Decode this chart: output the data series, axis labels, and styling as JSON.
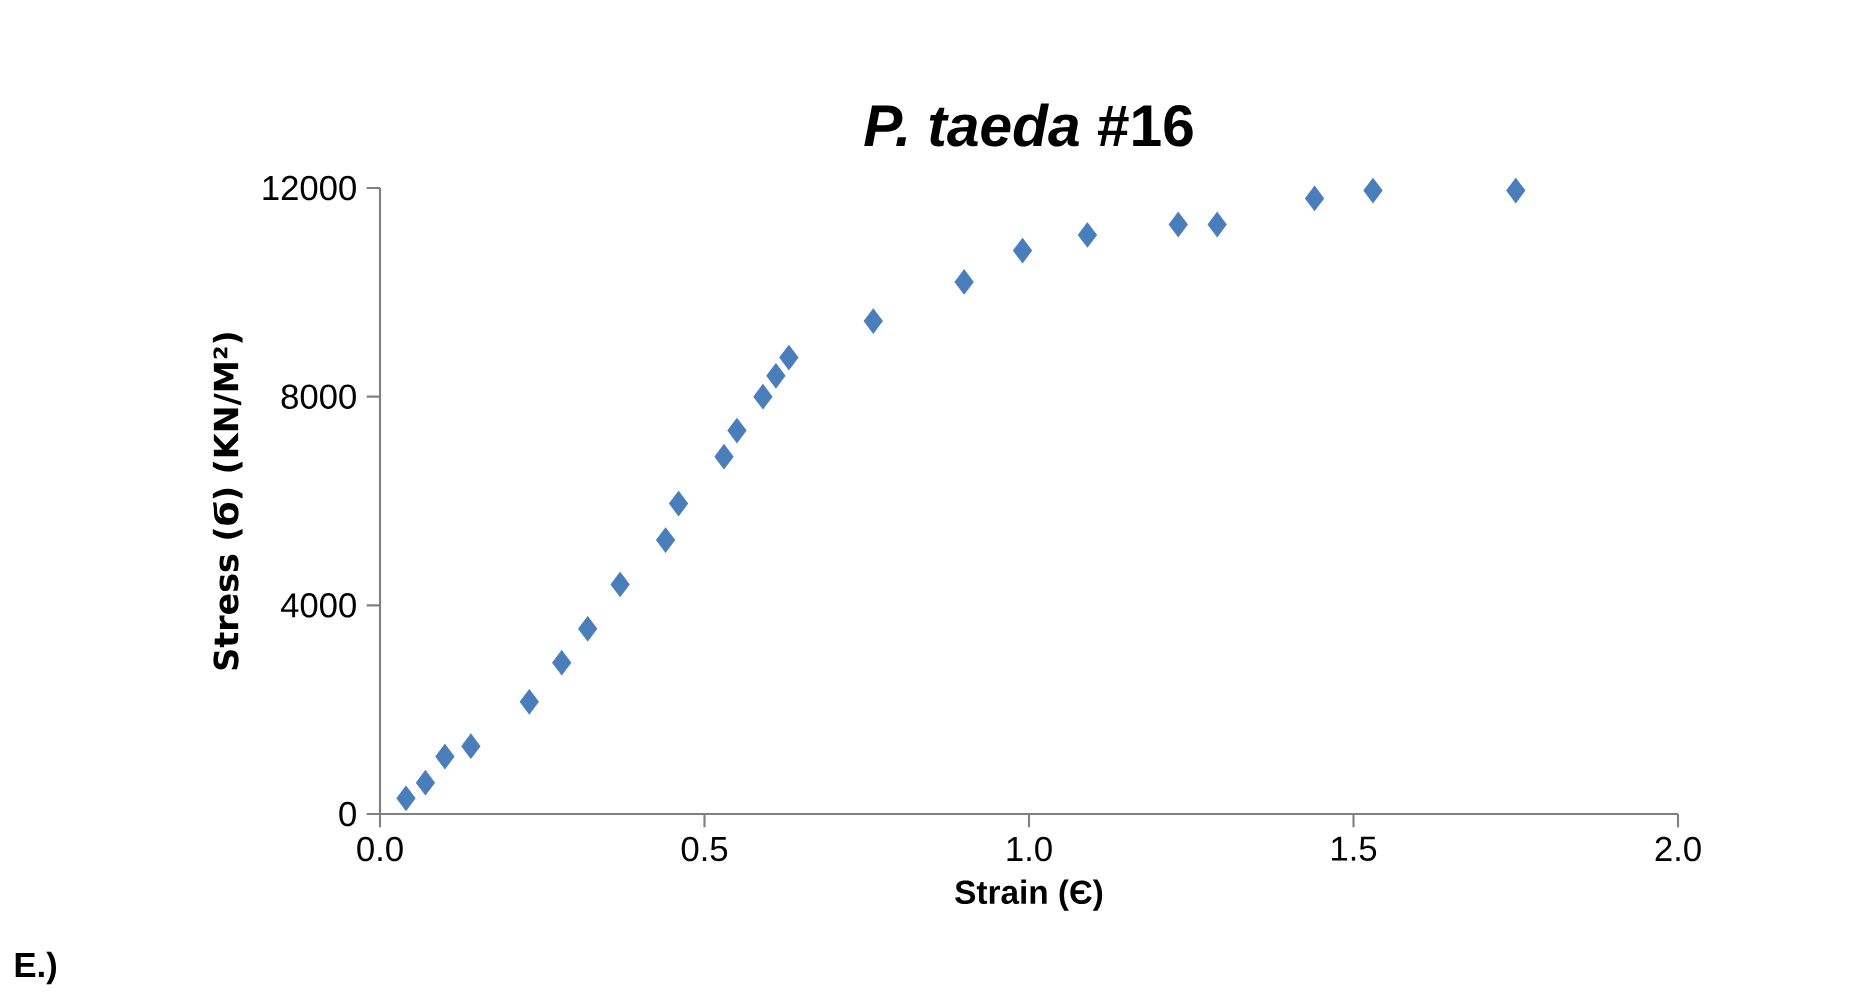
{
  "chart_data": {
    "type": "scatter",
    "title": "*P. taeda* #16",
    "xlabel": "Strain (Є)",
    "ylabel": "Stress (Ϭ) (KN/M²)",
    "annotations": [
      "E.)"
    ],
    "x": [
      0.04,
      0.07,
      0.1,
      0.14,
      0.23,
      0.28,
      0.32,
      0.37,
      0.44,
      0.46,
      0.53,
      0.55,
      0.59,
      0.61,
      0.63,
      0.76,
      0.9,
      0.99,
      1.09,
      1.23,
      1.29,
      1.44,
      1.53,
      1.75
    ],
    "series": [
      {
        "color": "#4a7ebb",
        "values": [
          300,
          600,
          1100,
          1300,
          2150,
          2900,
          3550,
          4400,
          5250,
          5950,
          6850,
          7350,
          8000,
          8400,
          8750,
          9450,
          10200,
          10800,
          11100,
          11300,
          11300,
          11800,
          11950,
          11950
        ]
      }
    ],
    "xlim": [
      0,
      2
    ],
    "ylim": [
      0,
      12000
    ],
    "xticks": [
      {
        "value": 0,
        "label": "0.0"
      },
      {
        "value": 0.5,
        "label": "0.5"
      },
      {
        "value": 1,
        "label": "1.0"
      },
      {
        "value": 1.5,
        "label": "1.5"
      },
      {
        "value": 2,
        "label": "2.0"
      }
    ],
    "yticks": [
      0,
      4000,
      8000,
      12000
    ],
    "marker": "diamond",
    "grid": false,
    "legend": false
  }
}
